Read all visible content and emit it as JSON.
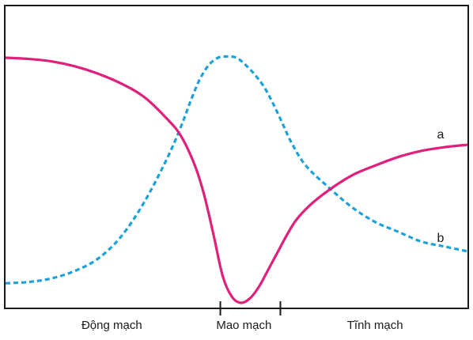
{
  "chart_data": {
    "type": "line",
    "title": "",
    "xlabel": "",
    "ylabel": "",
    "xlim": [
      0,
      100
    ],
    "ylim": [
      0,
      100
    ],
    "grid": false,
    "regions": [
      {
        "label": "Động mạch",
        "x_center": 23
      },
      {
        "label": "Mao mạch",
        "x_center": 51.6
      },
      {
        "label": "Tĩnh mạch",
        "x_center": 80
      }
    ],
    "region_boundaries": [
      46.5,
      59.5
    ],
    "series": [
      {
        "name": "a",
        "color": "#e0207a",
        "dash": "solid",
        "x": [
          0,
          5,
          10,
          15,
          20,
          25,
          30,
          35,
          38,
          41,
          43,
          45,
          47,
          49,
          51,
          53,
          55,
          57,
          59,
          61,
          63,
          66,
          70,
          75,
          80,
          85,
          90,
          95,
          100
        ],
        "y": [
          100,
          99.5,
          98.5,
          96.5,
          93.5,
          89.5,
          84,
          75,
          68,
          56,
          44,
          28,
          11,
          2.5,
          0,
          2,
          7,
          14,
          21,
          28,
          34,
          40,
          46,
          52,
          56,
          59.5,
          62,
          63.5,
          64.5
        ]
      },
      {
        "name": "b",
        "color": "#1ea0d8",
        "dash": "dashed",
        "x": [
          0,
          5,
          10,
          15,
          20,
          25,
          30,
          35,
          38,
          40,
          42,
          44,
          46,
          48,
          50,
          52,
          54,
          56,
          58,
          60,
          62,
          65,
          70,
          75,
          80,
          85,
          90,
          95,
          100
        ],
        "y": [
          8,
          8.5,
          10,
          13,
          18,
          27,
          41,
          59,
          72,
          82,
          91,
          97,
          100,
          100.5,
          100,
          97,
          93,
          88,
          81,
          73,
          65,
          56,
          47,
          39,
          33,
          29,
          25,
          23,
          21
        ]
      }
    ]
  }
}
